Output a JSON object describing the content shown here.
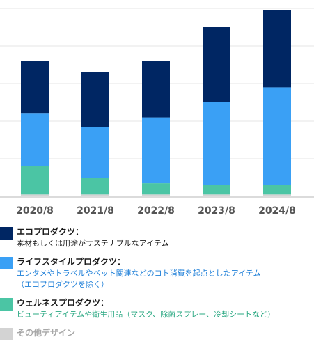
{
  "chart_data": {
    "type": "bar",
    "stacked": true,
    "categories": [
      "2020/8",
      "2021/8",
      "2022/8",
      "2023/8",
      "2024/8"
    ],
    "ylim": [
      0,
      100
    ],
    "grid": true,
    "series": [
      {
        "name": "その他デザイン",
        "color": "#d3d3d3",
        "values": [
          1,
          1,
          1,
          1,
          1
        ]
      },
      {
        "name": "ウェルネスプロダクツ",
        "color": "#4bc5a4",
        "values": [
          15,
          9,
          6,
          5,
          5
        ]
      },
      {
        "name": "ライフスタイルプロダクツ",
        "color": "#3aa0f5",
        "values": [
          28,
          27,
          35,
          44,
          52
        ]
      },
      {
        "name": "エコプロダクツ",
        "color": "#002663",
        "values": [
          28,
          29,
          30,
          40,
          41
        ]
      }
    ]
  },
  "legend": [
    {
      "title": "エコプロダクツ：",
      "desc_lines": [
        "素材もしくは用途がサステナブルなアイテム"
      ],
      "color": "#002663",
      "desc_color": "#1a1a1a"
    },
    {
      "title": "ライフスタイルプロダクツ：",
      "desc_lines": [
        "エンタメやトラベルやペット関連などのコト消費を起点としたアイテム",
        "（エコプロダクツを除く）"
      ],
      "color": "#3aa0f5",
      "desc_color": "#1e7fd8"
    },
    {
      "title": "ウェルネスプロダクツ：",
      "desc_lines": [
        "ビューティアイテムや衛生用品（マスク、除菌スプレー、冷却シートなど）"
      ],
      "color": "#4bc5a4",
      "desc_color": "#2aa882"
    },
    {
      "title": "その他デザイン",
      "desc_lines": [],
      "color": "#d3d3d3",
      "desc_color": "#a8a8a8"
    }
  ]
}
